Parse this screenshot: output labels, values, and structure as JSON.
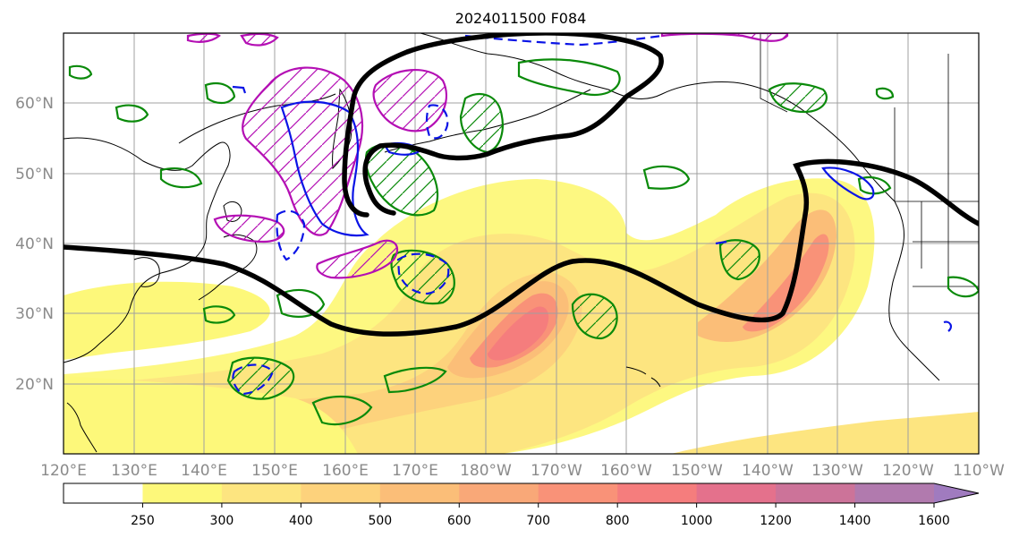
{
  "title": "2024011500 F084",
  "map": {
    "lon_ticks": [
      "120°E",
      "130°E",
      "140°E",
      "150°E",
      "160°E",
      "170°E",
      "180°W",
      "170°W",
      "160°W",
      "150°W",
      "140°W",
      "130°W",
      "120°W",
      "110°W"
    ],
    "lat_ticks": [
      "60°N",
      "50°N",
      "40°N",
      "30°N",
      "20°N"
    ],
    "lon_range": [
      120,
      250
    ],
    "lat_range": [
      10,
      70
    ],
    "grid": true
  },
  "colorbar": {
    "levels": [
      "250",
      "300",
      "400",
      "500",
      "600",
      "700",
      "800",
      "1000",
      "1200",
      "1400",
      "1600"
    ],
    "colors": [
      "#ffffff",
      "#fdf87a",
      "#fde580",
      "#fdd27c",
      "#fbbe78",
      "#f9a878",
      "#f99278",
      "#f57d7d",
      "#e4718c",
      "#cc7399",
      "#b17aae",
      "#a07bbf"
    ],
    "extend": "max"
  },
  "contour_colors": {
    "jet_axis": "#000000",
    "green": "#0a8a0a",
    "magenta": "#b40fb4",
    "blue": "#0a14e6"
  }
}
